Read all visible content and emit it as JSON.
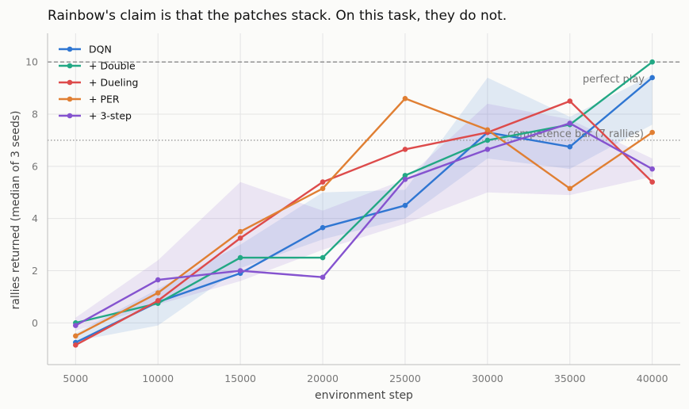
{
  "chart_data": {
    "type": "line",
    "title": "Rainbow's claim is that the patches stack. On this task, they do not.",
    "xlabel": "environment step",
    "ylabel": "rallies returned (median of 3 seeds)",
    "xlim": [
      3300,
      41700
    ],
    "ylim": [
      -1.6,
      11.1
    ],
    "xticks": [
      5000,
      10000,
      15000,
      20000,
      25000,
      30000,
      35000,
      40000
    ],
    "yticks": [
      0,
      2,
      4,
      6,
      8,
      10
    ],
    "grid": true,
    "legend_position": "top-left",
    "x": [
      5000,
      10000,
      15000,
      20000,
      25000,
      30000,
      35000,
      40000
    ],
    "series": [
      {
        "name": "DQN",
        "color": "#2f76d2",
        "values": [
          -0.75,
          0.8,
          1.9,
          3.65,
          4.5,
          7.3,
          6.75,
          9.4
        ]
      },
      {
        "name": "+ Double",
        "color": "#22a884",
        "values": [
          0.0,
          0.75,
          2.5,
          2.5,
          5.65,
          7.0,
          7.6,
          10.0
        ]
      },
      {
        "name": "+ Dueling",
        "color": "#dd4b4b",
        "values": [
          -0.85,
          0.85,
          3.25,
          5.4,
          6.65,
          7.3,
          8.5,
          5.4
        ]
      },
      {
        "name": "+ PER",
        "color": "#e07f33",
        "values": [
          -0.5,
          1.15,
          3.5,
          5.15,
          8.6,
          7.4,
          5.15,
          7.3
        ]
      },
      {
        "name": "+ 3-step",
        "color": "#8553cf",
        "values": [
          -0.1,
          1.65,
          2.0,
          1.75,
          5.5,
          6.65,
          7.65,
          5.9
        ]
      }
    ],
    "bands": [
      {
        "series": "DQN",
        "color": "#2f76d2",
        "lower": [
          -0.7,
          -0.1,
          2.1,
          3.2,
          4.0,
          6.3,
          5.9,
          7.6
        ],
        "upper": [
          -0.4,
          1.3,
          3.0,
          5.0,
          5.1,
          9.4,
          7.9,
          9.5
        ]
      },
      {
        "series": "+ 3-step",
        "color": "#8553cf",
        "lower": [
          -0.3,
          0.7,
          1.6,
          2.8,
          3.8,
          5.0,
          4.9,
          5.6
        ],
        "upper": [
          0.2,
          2.4,
          5.4,
          4.3,
          5.5,
          8.4,
          7.8,
          6.3
        ]
      }
    ],
    "reference_lines": [
      {
        "y": 10,
        "label": "perfect play",
        "style": "dashed",
        "color": "#8a8a8a"
      },
      {
        "y": 7,
        "label": "competence bar (7 rallies)",
        "style": "dotted",
        "color": "#9a9a9a"
      }
    ]
  }
}
